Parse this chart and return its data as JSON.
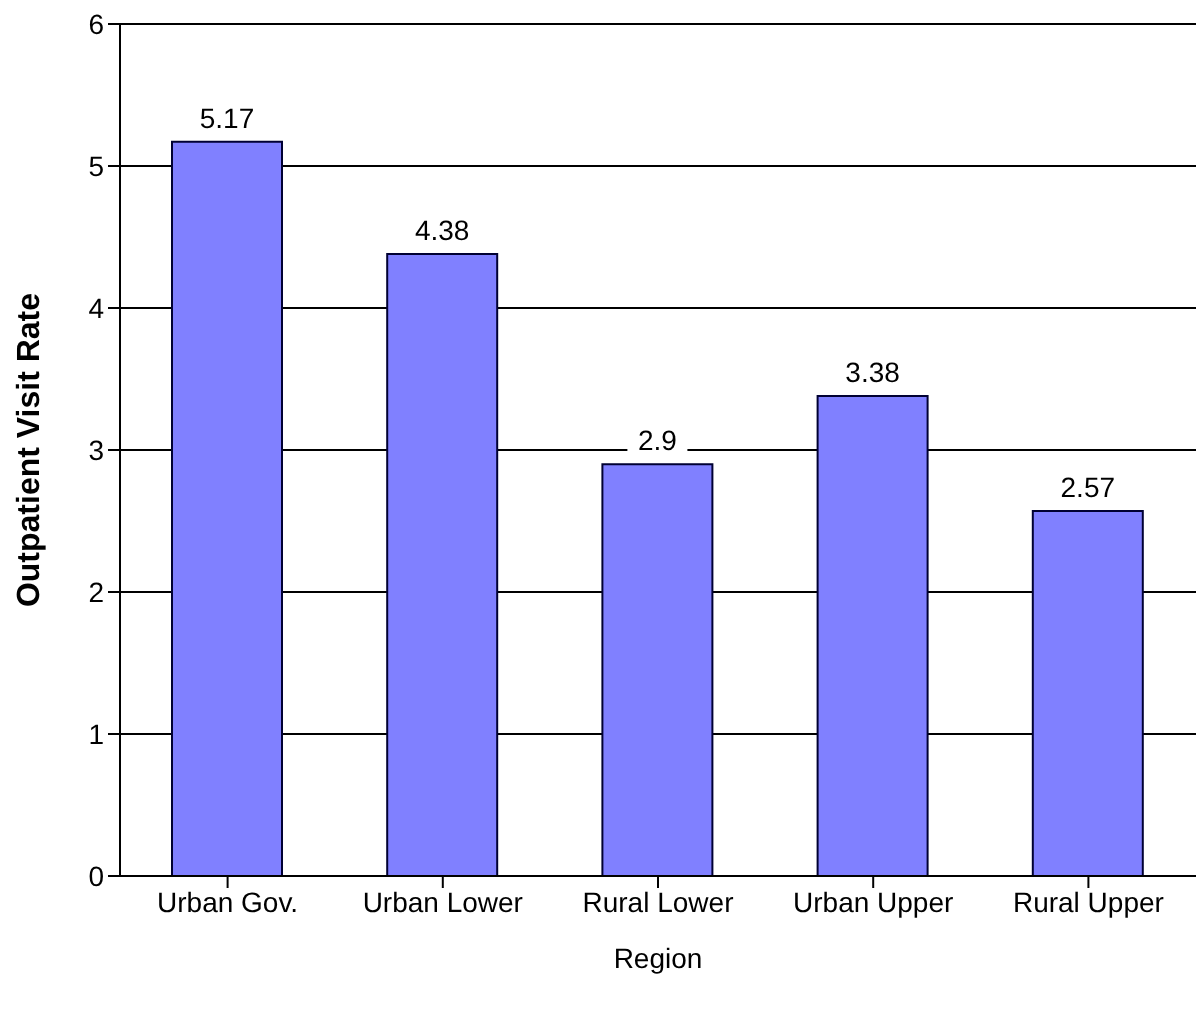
{
  "chart_data": {
    "type": "bar",
    "xlabel": "Region",
    "ylabel": "Outpatient Visit Rate",
    "categories": [
      "Urban Gov.",
      "Urban Lower",
      "Rural Lower",
      "Urban Upper",
      "Rural Upper"
    ],
    "values": [
      5.17,
      4.38,
      2.9,
      3.38,
      2.57
    ],
    "color": "#8080ff",
    "ylim": [
      0,
      6
    ],
    "yticks": [
      0,
      1,
      2,
      3,
      4,
      5,
      6
    ],
    "grid": "y",
    "data_labels": true
  }
}
